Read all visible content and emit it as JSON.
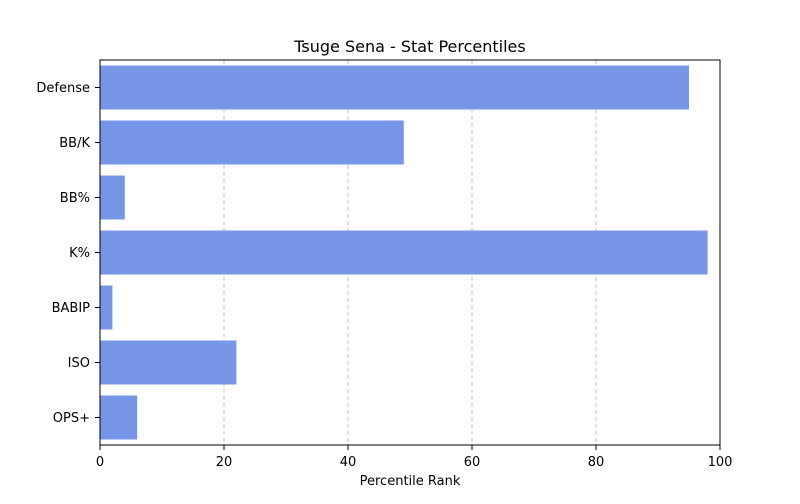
{
  "chart_data": {
    "type": "bar",
    "orientation": "horizontal",
    "title": "Tsuge Sena - Stat Percentiles",
    "xlabel": "Percentile Rank",
    "ylabel": "",
    "categories": [
      "Defense",
      "BB/K",
      "BB%",
      "K%",
      "BABIP",
      "ISO",
      "OPS+"
    ],
    "values": [
      95,
      49,
      4,
      98,
      2,
      22,
      6
    ],
    "xlim": [
      0,
      100
    ],
    "xticks": [
      0,
      20,
      40,
      60,
      80,
      100
    ],
    "grid": "x-dashed",
    "bar_color": "#7896e8"
  }
}
